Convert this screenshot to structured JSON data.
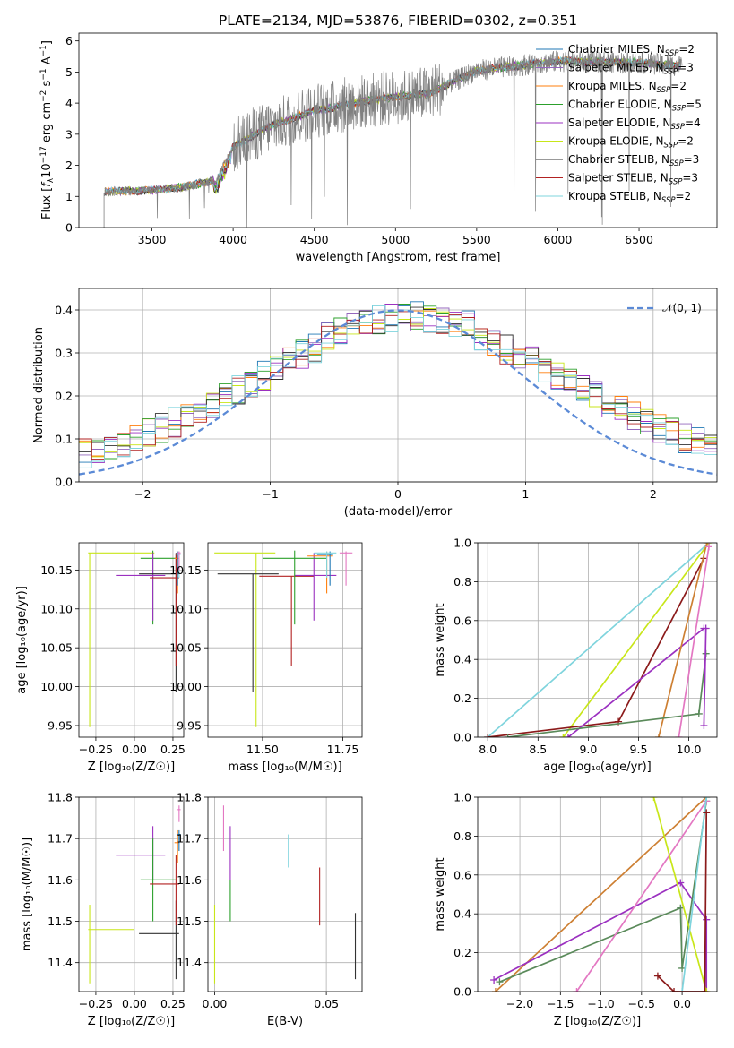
{
  "chart_data": [
    {
      "type": "line",
      "title": "PLATE=2134, MJD=53876, FIBERID=0302, z=0.351",
      "xlabel": "wavelength [Angstrom, rest frame]",
      "ylabel_parts": [
        "Flux [",
        "f",
        "λ",
        "10",
        "−17",
        " erg cm",
        "−2",
        " s",
        "−1",
        " A",
        "−1",
        "]"
      ],
      "xlim": [
        3050,
        6980
      ],
      "ylim": [
        0,
        6.25
      ],
      "xticks": [
        "3500",
        "4000",
        "4500",
        "5000",
        "5500",
        "6000",
        "6500"
      ],
      "xtick_values": [
        3500,
        4000,
        4500,
        5000,
        5500,
        6000,
        6500
      ],
      "yticks": [
        "0",
        "1",
        "2",
        "3",
        "4",
        "5",
        "6"
      ],
      "ytick_values": [
        0,
        1,
        2,
        3,
        4,
        5,
        6
      ],
      "data_series": {
        "name": "data",
        "color": "#808080"
      },
      "continuum_anchors": [
        [
          3200,
          1.15
        ],
        [
          3500,
          1.2
        ],
        [
          3700,
          1.3
        ],
        [
          3900,
          1.55
        ],
        [
          4000,
          2.6
        ],
        [
          4200,
          3.2
        ],
        [
          4500,
          3.75
        ],
        [
          4800,
          4.05
        ],
        [
          5000,
          4.2
        ],
        [
          5200,
          4.3
        ],
        [
          5500,
          5.05
        ],
        [
          6000,
          5.35
        ],
        [
          6500,
          5.3
        ],
        [
          6750,
          5.2
        ]
      ],
      "legend_entries": [
        {
          "base": "Chabrier MILES, N",
          "sub": "SSP",
          "tail": "=2"
        },
        {
          "base": "Salpeter MILES, N",
          "sub": "SSP",
          "tail": "=3"
        },
        {
          "base": "Kroupa MILES, N",
          "sub": "SSP",
          "tail": "=2"
        },
        {
          "base": "Chabrier ELODIE, N",
          "sub": "SSP",
          "tail": "=5"
        },
        {
          "base": "Salpeter ELODIE, N",
          "sub": "SSP",
          "tail": "=4"
        },
        {
          "base": "Kroupa ELODIE, N",
          "sub": "SSP",
          "tail": "=2"
        },
        {
          "base": "Chabrier STELIB, N",
          "sub": "SSP",
          "tail": "=3"
        },
        {
          "base": "Salpeter STELIB, N",
          "sub": "SSP",
          "tail": "=3"
        },
        {
          "base": "Kroupa STELIB, N",
          "sub": "SSP",
          "tail": "=2"
        }
      ],
      "series_colors": [
        "#1f77b4",
        "#9467bd",
        "#ff7f0e",
        "#2ca02c",
        "#9b30c0",
        "#c8e619",
        "#333333",
        "#b22222",
        "#7fd4dd"
      ]
    },
    {
      "type": "histogram",
      "xlabel": "(data-model)/error",
      "ylabel": "Normed distribution",
      "xlim": [
        -2.5,
        2.5
      ],
      "ylim": [
        0,
        0.45
      ],
      "xticks": [
        "−2",
        "−1",
        "0",
        "1",
        "2"
      ],
      "xtick_values": [
        -2,
        -1,
        0,
        1,
        2
      ],
      "yticks": [
        "0.0",
        "0.1",
        "0.2",
        "0.3",
        "0.4"
      ],
      "ytick_values": [
        0,
        0.1,
        0.2,
        0.3,
        0.4
      ],
      "gaussian": {
        "label": "𝒩(0, 1)",
        "mean": 0,
        "sigma": 1,
        "color": "#5b8ad6"
      },
      "bin_width": 0.1,
      "hist_colors": [
        "#1f77b4",
        "#9467bd",
        "#ff7f0e",
        "#2ca02c",
        "#9b30c0",
        "#c8e619",
        "#333333",
        "#b22222",
        "#7fd4dd"
      ]
    },
    {
      "type": "errorbar",
      "xlabel": "Z [log₁₀(Z/Z☉)]",
      "ylabel": "age  [log₁₀(age/yr)]",
      "xlim": [
        -0.36,
        0.32
      ],
      "ylim": [
        9.935,
        10.185
      ],
      "xticks": [
        "−0.25",
        "0.00",
        "0.25"
      ],
      "xtick_values": [
        -0.25,
        0,
        0.25
      ],
      "yticks": [
        "9.95",
        "10.00",
        "10.05",
        "10.10",
        "10.15"
      ],
      "ytick_values": [
        9.95,
        10.0,
        10.05,
        10.1,
        10.15
      ],
      "points": [
        {
          "x": -0.29,
          "xlo": -0.3,
          "xhi": 0.13,
          "y": 10.172,
          "ylo": 9.948,
          "yhi": 10.172,
          "color": "#c8e619"
        },
        {
          "x": 0.12,
          "xlo": 0.04,
          "xhi": 0.27,
          "y": 10.165,
          "ylo": 10.08,
          "yhi": 10.175,
          "color": "#2ca02c"
        },
        {
          "x": 0.12,
          "xlo": -0.12,
          "xhi": 0.2,
          "y": 10.143,
          "ylo": 10.085,
          "yhi": 10.172,
          "color": "#9b30c0"
        },
        {
          "x": 0.27,
          "xlo": 0.03,
          "xhi": 0.29,
          "y": 10.145,
          "ylo": 9.993,
          "yhi": 10.172,
          "color": "#333333"
        },
        {
          "x": 0.27,
          "xlo": 0.1,
          "xhi": 0.29,
          "y": 10.14,
          "ylo": 10.027,
          "yhi": 10.17,
          "color": "#b22222"
        },
        {
          "x": 0.28,
          "xlo": 0.26,
          "xhi": 0.29,
          "y": 10.165,
          "ylo": 10.12,
          "yhi": 10.172,
          "color": "#ff7f0e"
        },
        {
          "x": 0.28,
          "xlo": 0.27,
          "xhi": 0.29,
          "y": 10.17,
          "ylo": 10.13,
          "yhi": 10.174,
          "color": "#1f77b4"
        },
        {
          "x": 0.29,
          "xlo": 0.28,
          "xhi": 0.3,
          "y": 10.17,
          "ylo": 10.14,
          "yhi": 10.174,
          "color": "#7fd4dd"
        },
        {
          "x": 0.29,
          "xlo": 0.28,
          "xhi": 0.3,
          "y": 10.172,
          "ylo": 10.15,
          "yhi": 10.174,
          "color": "#e377c2"
        }
      ]
    },
    {
      "type": "errorbar",
      "xlabel": "mass [log₁₀(M/M☉)]",
      "ylabel": "",
      "xlim": [
        11.33,
        11.81
      ],
      "ylim": [
        9.935,
        10.185
      ],
      "xticks": [
        "11.50",
        "11.75"
      ],
      "xtick_values": [
        11.5,
        11.75
      ],
      "yticks": [
        "9.95",
        "10.00",
        "10.05",
        "10.10",
        "10.15"
      ],
      "ytick_values": [
        9.95,
        10.0,
        10.05,
        10.1,
        10.15
      ],
      "points": [
        {
          "x": 11.48,
          "xlo": 11.35,
          "xhi": 11.54,
          "y": 10.172,
          "ylo": 9.948,
          "yhi": 10.172,
          "color": "#c8e619"
        },
        {
          "x": 11.47,
          "xlo": 11.36,
          "xhi": 11.55,
          "y": 10.145,
          "ylo": 9.993,
          "yhi": 10.145,
          "color": "#333333"
        },
        {
          "x": 11.59,
          "xlo": 11.49,
          "xhi": 11.66,
          "y": 10.142,
          "ylo": 10.027,
          "yhi": 10.142,
          "color": "#b22222"
        },
        {
          "x": 11.66,
          "xlo": 11.6,
          "xhi": 11.73,
          "y": 10.143,
          "ylo": 10.085,
          "yhi": 10.172,
          "color": "#9b30c0"
        },
        {
          "x": 11.6,
          "xlo": 11.5,
          "xhi": 11.7,
          "y": 10.165,
          "ylo": 10.08,
          "yhi": 10.175,
          "color": "#2ca02c"
        },
        {
          "x": 11.7,
          "xlo": 11.64,
          "xhi": 11.72,
          "y": 10.168,
          "ylo": 10.12,
          "yhi": 10.174,
          "color": "#ff7f0e"
        },
        {
          "x": 11.71,
          "xlo": 11.67,
          "xhi": 11.72,
          "y": 10.17,
          "ylo": 10.13,
          "yhi": 10.174,
          "color": "#1f77b4"
        },
        {
          "x": 11.7,
          "xlo": 11.66,
          "xhi": 11.73,
          "y": 10.172,
          "ylo": 10.14,
          "yhi": 10.174,
          "color": "#7fd4dd"
        },
        {
          "x": 11.76,
          "xlo": 11.74,
          "xhi": 11.78,
          "y": 10.172,
          "ylo": 10.13,
          "yhi": 10.174,
          "color": "#e377c2"
        }
      ]
    },
    {
      "type": "line",
      "xlabel": "age  [log₁₀(age/yr)]",
      "ylabel": "mass weight",
      "xlim": [
        7.9,
        10.28
      ],
      "ylim": [
        0,
        1
      ],
      "xticks": [
        "8.0",
        "8.5",
        "9.0",
        "9.5",
        "10.0"
      ],
      "xtick_values": [
        8.0,
        8.5,
        9.0,
        9.5,
        10.0
      ],
      "yticks": [
        "0.0",
        "0.2",
        "0.4",
        "0.6",
        "0.8",
        "1.0"
      ],
      "ytick_values": [
        0,
        0.2,
        0.4,
        0.6,
        0.8,
        1.0
      ],
      "series": [
        {
          "color": "#7fd4dd",
          "x": [
            8.0,
            10.2
          ],
          "y": [
            0.0,
            1.0
          ]
        },
        {
          "color": "#c8e619",
          "x": [
            8.75,
            10.2
          ],
          "y": [
            0.0,
            1.0
          ]
        },
        {
          "color": "#8b1a1a",
          "x": [
            8.0,
            9.3,
            10.15
          ],
          "y": [
            0.0,
            0.08,
            0.92
          ]
        },
        {
          "color": "#9b30c0",
          "x": [
            8.8,
            10.15
          ],
          "y": [
            0.0,
            0.56
          ]
        },
        {
          "color": "#cd7f32",
          "x": [
            9.7,
            10.18
          ],
          "y": [
            0.0,
            1.0
          ]
        },
        {
          "color": "#5a8a5a",
          "x": [
            8.2,
            10.1,
            10.17
          ],
          "y": [
            0.0,
            0.12,
            0.43
          ]
        },
        {
          "color": "#e377c2",
          "x": [
            9.9,
            10.2
          ],
          "y": [
            0.0,
            0.98
          ]
        },
        {
          "color": "#9b30c0",
          "x": [
            10.15,
            10.17
          ],
          "y": [
            0.06,
            0.56
          ]
        }
      ]
    },
    {
      "type": "errorbar",
      "xlabel": "Z [log₁₀(Z/Z☉)]",
      "ylabel": "mass [log₁₀(M/M☉)]",
      "xlim": [
        -0.36,
        0.32
      ],
      "ylim": [
        11.33,
        11.8
      ],
      "xticks": [
        "−0.25",
        "0.00",
        "0.25"
      ],
      "xtick_values": [
        -0.25,
        0,
        0.25
      ],
      "yticks": [
        "11.4",
        "11.5",
        "11.6",
        "11.7",
        "11.8"
      ],
      "ytick_values": [
        11.4,
        11.5,
        11.6,
        11.7,
        11.8
      ],
      "points": [
        {
          "x": -0.29,
          "xlo": -0.3,
          "xhi": 0.0,
          "y": 11.48,
          "ylo": 11.35,
          "yhi": 11.54,
          "color": "#c8e619"
        },
        {
          "x": 0.27,
          "xlo": 0.03,
          "xhi": 0.29,
          "y": 11.47,
          "ylo": 11.36,
          "yhi": 11.55,
          "color": "#333333"
        },
        {
          "x": 0.12,
          "xlo": -0.12,
          "xhi": 0.2,
          "y": 11.66,
          "ylo": 11.6,
          "yhi": 11.73,
          "color": "#9b30c0"
        },
        {
          "x": 0.12,
          "xlo": 0.04,
          "xhi": 0.27,
          "y": 11.6,
          "ylo": 11.5,
          "yhi": 11.7,
          "color": "#2ca02c"
        },
        {
          "x": 0.27,
          "xlo": 0.1,
          "xhi": 0.29,
          "y": 11.59,
          "ylo": 11.49,
          "yhi": 11.66,
          "color": "#b22222"
        },
        {
          "x": 0.28,
          "xlo": 0.26,
          "xhi": 0.29,
          "y": 11.69,
          "ylo": 11.64,
          "yhi": 11.72,
          "color": "#ff7f0e"
        },
        {
          "x": 0.29,
          "xlo": 0.28,
          "xhi": 0.3,
          "y": 11.71,
          "ylo": 11.67,
          "yhi": 11.72,
          "color": "#1f77b4"
        },
        {
          "x": 0.29,
          "xlo": 0.28,
          "xhi": 0.3,
          "y": 11.77,
          "ylo": 11.74,
          "yhi": 11.78,
          "color": "#e377c2"
        }
      ]
    },
    {
      "type": "errorbar",
      "xlabel": "E(B-V)",
      "ylabel": "",
      "xlim": [
        -0.003,
        0.066
      ],
      "ylim": [
        11.33,
        11.8
      ],
      "xticks": [
        "0.00",
        "0.05"
      ],
      "xtick_values": [
        0.0,
        0.05
      ],
      "yticks": [
        "11.4",
        "11.5",
        "11.6",
        "11.7",
        "11.8"
      ],
      "ytick_values": [
        11.4,
        11.5,
        11.6,
        11.7,
        11.8
      ],
      "points": [
        {
          "x": 0.0,
          "xlo": 0.0,
          "xhi": 0.0,
          "y": 11.48,
          "ylo": 11.35,
          "yhi": 11.54,
          "color": "#c8e619"
        },
        {
          "x": 0.004,
          "xlo": 0.004,
          "xhi": 0.004,
          "y": 11.71,
          "ylo": 11.67,
          "yhi": 11.78,
          "color": "#e377c2"
        },
        {
          "x": 0.007,
          "xlo": 0.007,
          "xhi": 0.007,
          "y": 11.66,
          "ylo": 11.6,
          "yhi": 11.73,
          "color": "#9b30c0"
        },
        {
          "x": 0.007,
          "xlo": 0.007,
          "xhi": 0.007,
          "y": 11.6,
          "ylo": 11.5,
          "yhi": 11.6,
          "color": "#2ca02c"
        },
        {
          "x": 0.033,
          "xlo": 0.033,
          "xhi": 0.033,
          "y": 11.67,
          "ylo": 11.63,
          "yhi": 11.71,
          "color": "#7fd4dd"
        },
        {
          "x": 0.047,
          "xlo": 0.047,
          "xhi": 0.047,
          "y": 11.59,
          "ylo": 11.49,
          "yhi": 11.63,
          "color": "#b22222"
        },
        {
          "x": 0.063,
          "xlo": 0.063,
          "xhi": 0.063,
          "y": 11.47,
          "ylo": 11.36,
          "yhi": 11.52,
          "color": "#333333"
        }
      ]
    },
    {
      "type": "line",
      "xlabel": "Z [log₁₀(Z/Z☉)]",
      "ylabel": "mass weight",
      "xlim": [
        -2.52,
        0.43
      ],
      "ylim": [
        0,
        1
      ],
      "xticks": [
        "−2.0",
        "−1.5",
        "−1.0",
        "−0.5",
        "0.0"
      ],
      "xtick_values": [
        -2.0,
        -1.5,
        -1.0,
        -0.5,
        0.0
      ],
      "yticks": [
        "0.0",
        "0.2",
        "0.4",
        "0.6",
        "0.8",
        "1.0"
      ],
      "ytick_values": [
        0,
        0.2,
        0.4,
        0.6,
        0.8,
        1.0
      ],
      "series": [
        {
          "color": "#cd7f32",
          "x": [
            -2.3,
            0.3
          ],
          "y": [
            0.0,
            1.0
          ]
        },
        {
          "color": "#9b30c0",
          "x": [
            -2.32,
            -0.02,
            0.3,
            0.3
          ],
          "y": [
            0.06,
            0.56,
            0.37,
            0.0
          ]
        },
        {
          "color": "#5a8a5a",
          "x": [
            -2.25,
            -0.02,
            0.0,
            0.3
          ],
          "y": [
            0.05,
            0.43,
            0.12,
            0.98
          ]
        },
        {
          "color": "#e377c2",
          "x": [
            -1.3,
            0.3
          ],
          "y": [
            0.0,
            0.98
          ]
        },
        {
          "color": "#c8e619",
          "x": [
            -0.35,
            0.3
          ],
          "y": [
            1.0,
            0.0
          ]
        },
        {
          "color": "#7fd4dd",
          "x": [
            0.0,
            0.3
          ],
          "y": [
            0.0,
            1.0
          ]
        },
        {
          "color": "#8b1a1a",
          "x": [
            -0.3,
            -0.1,
            0.28,
            0.3
          ],
          "y": [
            0.08,
            0.0,
            0.0,
            0.92
          ]
        }
      ]
    }
  ]
}
